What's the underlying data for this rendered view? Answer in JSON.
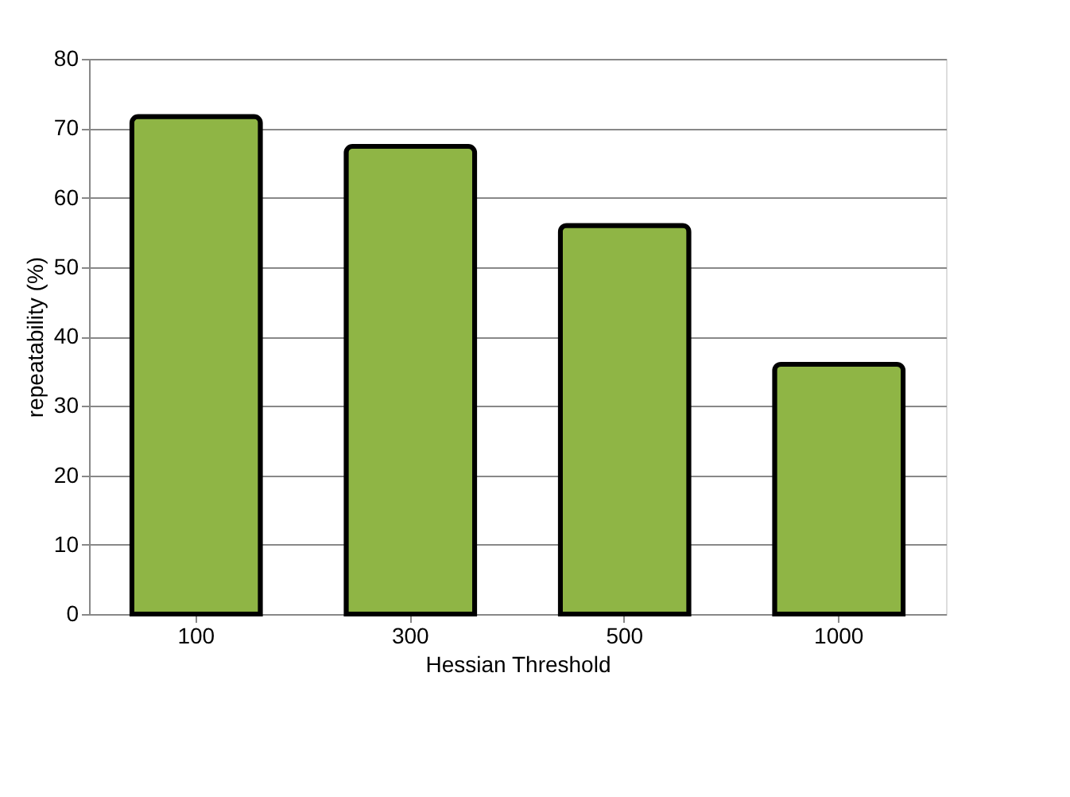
{
  "chart_data": {
    "type": "bar",
    "xlabel": "Hessian Threshold",
    "ylabel": "repeatability (%)",
    "categories": [
      "100",
      "300",
      "500",
      "1000"
    ],
    "values": [
      71.7,
      67.4,
      56,
      36
    ],
    "color": "#8fb545",
    "ylim": [
      0,
      80
    ],
    "yticks": [
      0,
      10,
      20,
      30,
      40,
      50,
      60,
      70,
      80
    ],
    "grid": "y"
  }
}
